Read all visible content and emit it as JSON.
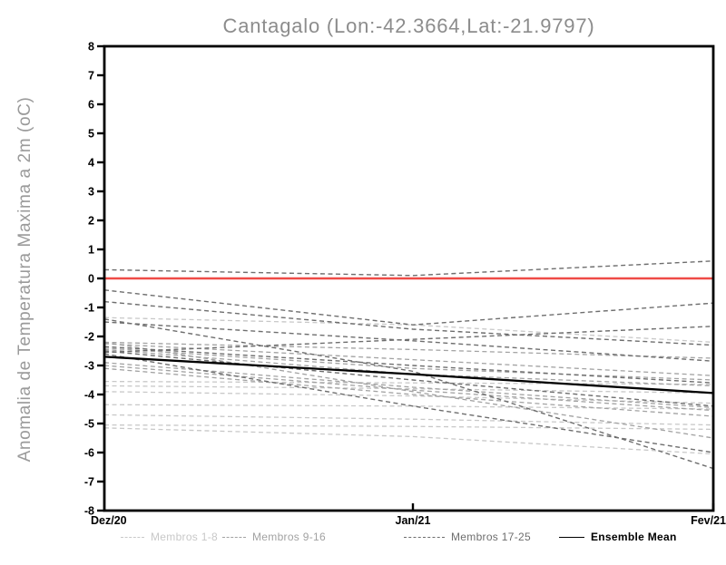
{
  "colors": {
    "background": "#ffffff",
    "axis": "#000000",
    "title_text": "#8c8c8c",
    "ylabel_text": "#9a9a9a",
    "zero_line": "#ef4b47",
    "ensemble_mean": "#000000",
    "members_1_8": "#c8c8c8",
    "members_9_16": "#a2a2a2",
    "members_17_25": "#6e6e6e"
  },
  "chart_data": {
    "type": "line",
    "title": "Cantagalo (Lon:-42.3664,Lat:-21.9797)",
    "ylabel": "Anomalia de Temperatura Maxima a 2m (oC)",
    "xlabel": "",
    "x_ticklabels": [
      "Dez/20",
      "Jan/21",
      "Fev/21"
    ],
    "ylim": [
      -8,
      8
    ],
    "y_tick_step": 1,
    "grid": false,
    "legend_position": "bottom",
    "legend": [
      {
        "label": "Membros 1-8",
        "series_key": "members_1_8",
        "line_style": "dashed"
      },
      {
        "label": "Membros 9-16",
        "series_key": "members_9_16",
        "line_style": "dashed"
      },
      {
        "label": "Membros 17-25",
        "series_key": "members_17_25",
        "line_style": "dashed"
      },
      {
        "label": "Ensemble Mean",
        "series_key": "ensemble_mean",
        "line_style": "solid"
      }
    ],
    "reference_line": {
      "name": "zero-line",
      "value": 0,
      "color_key": "zero_line"
    },
    "series": [
      {
        "name": "member",
        "group": "members_17_25",
        "values": [
          0.3,
          0.1,
          0.6
        ]
      },
      {
        "name": "member",
        "group": "members_17_25",
        "values": [
          -0.4,
          -1.6,
          -0.85
        ]
      },
      {
        "name": "member",
        "group": "members_17_25",
        "values": [
          -0.8,
          -1.75,
          -2.3
        ]
      },
      {
        "name": "member",
        "group": "members_17_25",
        "values": [
          -1.5,
          -2.15,
          -2.85
        ]
      },
      {
        "name": "member",
        "group": "members_17_25",
        "values": [
          -1.4,
          -3.2,
          -6.55
        ]
      },
      {
        "name": "member",
        "group": "members_17_25",
        "values": [
          -2.55,
          -2.1,
          -1.65
        ]
      },
      {
        "name": "member",
        "group": "members_17_25",
        "values": [
          -2.35,
          -3.0,
          -3.6
        ]
      },
      {
        "name": "member",
        "group": "members_17_25",
        "values": [
          -2.5,
          -3.5,
          -4.4
        ]
      },
      {
        "name": "member",
        "group": "members_17_25",
        "values": [
          -2.6,
          -4.4,
          -6.0
        ]
      },
      {
        "name": "member",
        "group": "members_9_16",
        "values": [
          -2.2,
          -2.45,
          -2.75
        ]
      },
      {
        "name": "member",
        "group": "members_9_16",
        "values": [
          -2.25,
          -2.8,
          -3.35
        ]
      },
      {
        "name": "member",
        "group": "members_9_16",
        "values": [
          -2.4,
          -3.1,
          -3.5
        ]
      },
      {
        "name": "member",
        "group": "members_9_16",
        "values": [
          -2.45,
          -3.3,
          -3.7
        ]
      },
      {
        "name": "member",
        "group": "members_9_16",
        "values": [
          -2.9,
          -3.75,
          -4.45
        ]
      },
      {
        "name": "member",
        "group": "members_9_16",
        "values": [
          -3.0,
          -3.85,
          -4.55
        ]
      },
      {
        "name": "member",
        "group": "members_9_16",
        "values": [
          -3.1,
          -4.0,
          -4.75
        ]
      },
      {
        "name": "member",
        "group": "members_9_16",
        "values": [
          -2.2,
          -3.9,
          -5.5
        ]
      },
      {
        "name": "member",
        "group": "members_1_8",
        "values": [
          -1.35,
          -1.6,
          -2.2
        ]
      },
      {
        "name": "member",
        "group": "members_1_8",
        "values": [
          -3.55,
          -3.6,
          -3.65
        ]
      },
      {
        "name": "member",
        "group": "members_1_8",
        "values": [
          -3.7,
          -3.8,
          -3.95
        ]
      },
      {
        "name": "member",
        "group": "members_1_8",
        "values": [
          -3.9,
          -4.05,
          -4.3
        ]
      },
      {
        "name": "member",
        "group": "members_1_8",
        "values": [
          -4.35,
          -4.4,
          -4.5
        ]
      },
      {
        "name": "member",
        "group": "members_1_8",
        "values": [
          -4.7,
          -4.85,
          -5.05
        ]
      },
      {
        "name": "member",
        "group": "members_1_8",
        "values": [
          -5.05,
          -5.1,
          -5.2
        ]
      },
      {
        "name": "member",
        "group": "members_1_8",
        "values": [
          -5.15,
          -5.45,
          -6.05
        ]
      },
      {
        "name": "ensemble_mean",
        "group": "ensemble_mean",
        "values": [
          -2.7,
          -3.3,
          -3.95
        ]
      }
    ]
  }
}
